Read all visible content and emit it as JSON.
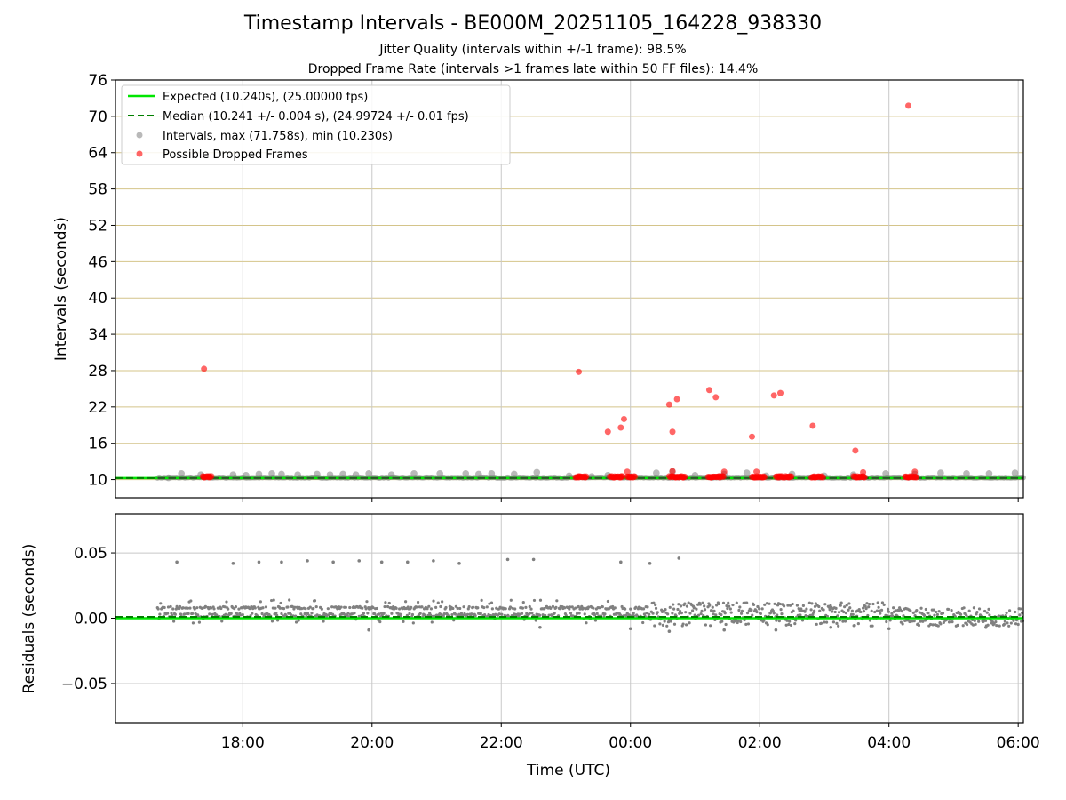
{
  "title": "Timestamp Intervals - BE000M_20251105_164228_938330",
  "subtitle_1": "Jitter Quality (intervals within +/-1 frame): 98.5%",
  "subtitle_2": "Dropped Frame Rate (intervals >1 frames late within 50 FF files): 14.4%",
  "colors": {
    "expected": "#00e600",
    "median": "#008000",
    "intervals": "#808080",
    "dropped": "#ff0000",
    "hgrid_top": "#d4c48a",
    "grid": "#c8c8c8"
  },
  "chart_data": [
    {
      "type": "scatter",
      "panel": "top",
      "ylabel": "Intervals (seconds)",
      "ylim": [
        7,
        76
      ],
      "yticks": [
        10,
        16,
        22,
        28,
        34,
        40,
        46,
        52,
        58,
        64,
        70,
        76
      ],
      "xlim_hours": [
        16.03,
        30.08
      ],
      "grid": "on",
      "legend": {
        "placement": "top-left",
        "entries": [
          "Expected (10.240s), (25.00000 fps)",
          "Median (10.241 +/- 0.004 s), (24.99724 +/- 0.01 fps)",
          "Intervals, max (71.758s), min (10.230s)",
          "Possible Dropped Frames"
        ]
      },
      "lines": {
        "expected": 10.24,
        "median": 10.241
      },
      "series": [
        {
          "name": "Intervals, max (71.758s), min (10.230s)",
          "points": [
            [
              16.85,
              10.3
            ],
            [
              17.05,
              11.0
            ],
            [
              17.35,
              10.8
            ],
            [
              17.85,
              10.8
            ],
            [
              18.05,
              10.7
            ],
            [
              18.25,
              10.9
            ],
            [
              18.45,
              11.0
            ],
            [
              18.6,
              10.9
            ],
            [
              18.85,
              10.8
            ],
            [
              19.15,
              10.9
            ],
            [
              19.35,
              10.8
            ],
            [
              19.55,
              10.9
            ],
            [
              19.75,
              10.8
            ],
            [
              19.95,
              11.0
            ],
            [
              20.3,
              10.8
            ],
            [
              20.65,
              11.0
            ],
            [
              21.05,
              11.0
            ],
            [
              21.45,
              11.0
            ],
            [
              21.65,
              10.9
            ],
            [
              21.85,
              11.0
            ],
            [
              22.2,
              10.9
            ],
            [
              22.55,
              11.2
            ],
            [
              23.05,
              10.6
            ],
            [
              23.4,
              10.5
            ],
            [
              23.65,
              10.7
            ],
            [
              24.0,
              10.5
            ],
            [
              24.4,
              11.1
            ],
            [
              24.65,
              11.3
            ],
            [
              25.0,
              10.7
            ],
            [
              25.45,
              10.9
            ],
            [
              25.8,
              11.1
            ],
            [
              26.1,
              10.6
            ],
            [
              26.5,
              10.9
            ],
            [
              27.0,
              10.6
            ],
            [
              27.45,
              10.8
            ],
            [
              27.95,
              11.0
            ],
            [
              28.4,
              10.9
            ],
            [
              28.8,
              11.1
            ],
            [
              29.2,
              11.0
            ],
            [
              29.55,
              11.0
            ],
            [
              29.95,
              11.1
            ]
          ]
        },
        {
          "name": "Possible Dropped Frames",
          "points": [
            [
              17.4,
              28.3
            ],
            [
              23.2,
              27.8
            ],
            [
              23.65,
              17.9
            ],
            [
              23.85,
              18.6
            ],
            [
              23.9,
              20.0
            ],
            [
              24.6,
              22.4
            ],
            [
              24.65,
              17.9
            ],
            [
              24.72,
              23.3
            ],
            [
              25.22,
              24.8
            ],
            [
              25.32,
              23.6
            ],
            [
              25.88,
              17.1
            ],
            [
              26.22,
              23.9
            ],
            [
              26.32,
              24.3
            ],
            [
              26.82,
              18.9
            ],
            [
              27.48,
              14.8
            ],
            [
              28.3,
              71.76
            ],
            [
              23.95,
              11.3
            ],
            [
              24.65,
              11.4
            ],
            [
              25.45,
              11.3
            ],
            [
              25.95,
              11.3
            ],
            [
              27.6,
              11.2
            ],
            [
              28.4,
              11.3
            ],
            [
              17.4,
              10.35
            ],
            [
              17.48,
              10.35
            ],
            [
              23.2,
              10.35
            ],
            [
              23.3,
              10.35
            ],
            [
              23.75,
              10.35
            ],
            [
              23.85,
              10.35
            ],
            [
              24.0,
              10.35
            ],
            [
              24.7,
              10.35
            ],
            [
              24.82,
              10.35
            ],
            [
              25.25,
              10.35
            ],
            [
              25.38,
              10.35
            ],
            [
              25.92,
              10.35
            ],
            [
              26.05,
              10.35
            ],
            [
              26.3,
              10.35
            ],
            [
              26.45,
              10.35
            ],
            [
              26.85,
              10.35
            ],
            [
              26.98,
              10.35
            ],
            [
              27.5,
              10.35
            ],
            [
              27.62,
              10.35
            ],
            [
              28.3,
              10.35
            ],
            [
              28.42,
              10.35
            ]
          ]
        }
      ]
    },
    {
      "type": "scatter",
      "panel": "bottom",
      "xlabel": "Time (UTC)",
      "ylabel": "Residuals (seconds)",
      "ylim": [
        -0.08,
        0.08
      ],
      "yticks": [
        "0.05",
        "0.00",
        "−0.05"
      ],
      "xticks": [
        "18:00",
        "20:00",
        "22:00",
        "00:00",
        "02:00",
        "04:00",
        "06:00"
      ],
      "grid": "on",
      "series": [
        {
          "name": "Residuals",
          "outliers": [
            [
              16.98,
              0.043
            ],
            [
              17.85,
              0.042
            ],
            [
              18.25,
              0.043
            ],
            [
              18.6,
              0.043
            ],
            [
              19.0,
              0.044
            ],
            [
              19.4,
              0.043
            ],
            [
              19.8,
              0.044
            ],
            [
              20.15,
              0.043
            ],
            [
              20.55,
              0.043
            ],
            [
              20.95,
              0.044
            ],
            [
              21.35,
              0.042
            ],
            [
              22.1,
              0.045
            ],
            [
              22.5,
              0.045
            ],
            [
              23.85,
              0.043
            ],
            [
              24.3,
              0.042
            ],
            [
              24.75,
              0.046
            ],
            [
              19.95,
              -0.009
            ],
            [
              22.6,
              -0.007
            ],
            [
              24.0,
              -0.008
            ],
            [
              24.6,
              -0.01
            ],
            [
              25.45,
              -0.009
            ],
            [
              26.25,
              -0.009
            ],
            [
              27.1,
              -0.007
            ],
            [
              28.0,
              -0.008
            ],
            [
              29.5,
              -0.007
            ]
          ]
        }
      ]
    }
  ]
}
